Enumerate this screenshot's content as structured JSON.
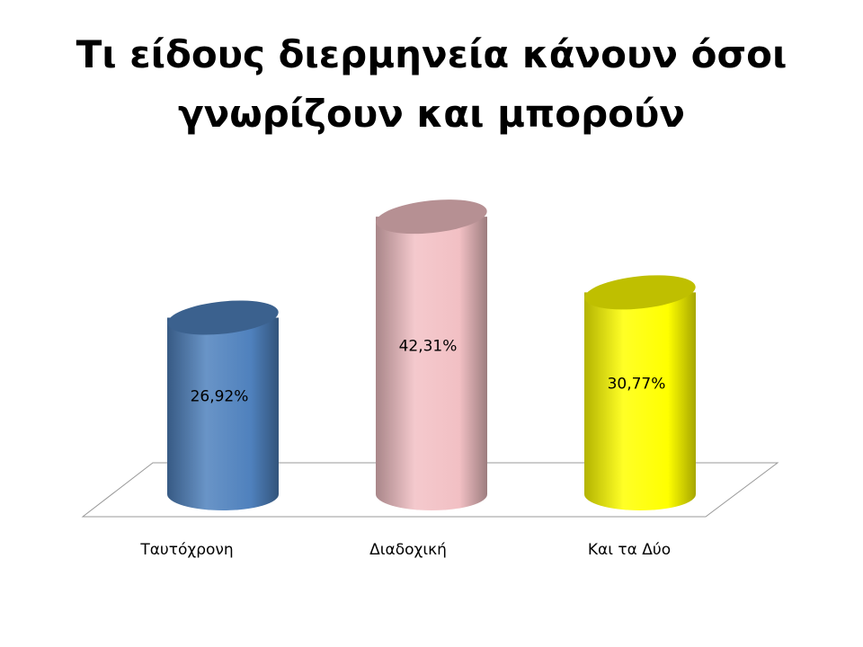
{
  "chart_data": {
    "type": "cylinder",
    "title": "Τι είδους διερμηνεία κάνουν όσοι γνωρίζουν και μπορούν",
    "categories": [
      "Ταυτόχρονη",
      "Διαδοχική",
      "Και τα Δύο"
    ],
    "values": [
      26.92,
      42.31,
      30.77
    ],
    "value_labels": [
      "26,92%",
      "42,31%",
      "30,77%"
    ],
    "colors": [
      "#4f81bd",
      "#f2c0c4",
      "#ffff00"
    ]
  }
}
